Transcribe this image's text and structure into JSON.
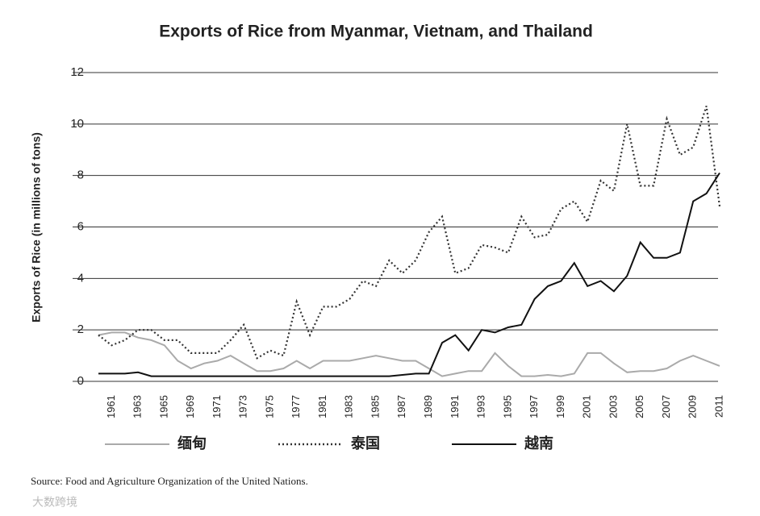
{
  "chart_data": {
    "type": "line",
    "title": "Exports of Rice from Myanmar, Vietnam, and Thailand",
    "y_label": "Exports of Rice (in millions of tons)",
    "source": "Source: Food and Agriculture Organization of the United Nations.",
    "watermark": "大数跨境",
    "categories": [
      null,
      "1961",
      null,
      "1963",
      null,
      "1965",
      null,
      "1969",
      null,
      "1971",
      null,
      "1973",
      null,
      "1975",
      null,
      "1977",
      null,
      "1981",
      null,
      "1983",
      null,
      "1985",
      null,
      "1987",
      null,
      "1989",
      null,
      "1991",
      null,
      "1993",
      null,
      "1995",
      null,
      "1997",
      null,
      "1999",
      null,
      "2001",
      null,
      "2003",
      null,
      "2005",
      null,
      "2007",
      null,
      "2009",
      null,
      "2011"
    ],
    "series": [
      {
        "name": "缅甸",
        "color": "#aaaaaa",
        "dash": "solid",
        "values": [
          1.8,
          1.9,
          1.9,
          1.7,
          1.6,
          1.4,
          0.8,
          0.5,
          0.7,
          0.8,
          1.0,
          0.7,
          0.4,
          0.4,
          0.5,
          0.8,
          0.5,
          0.8,
          0.8,
          0.8,
          0.9,
          1.0,
          0.9,
          0.8,
          0.8,
          0.5,
          0.2,
          0.3,
          0.4,
          0.4,
          1.1,
          0.6,
          0.2,
          0.2,
          0.25,
          0.2,
          0.3,
          1.1,
          1.1,
          0.7,
          0.35,
          0.4,
          0.4,
          0.5,
          0.8,
          1.0,
          0.8,
          0.6
        ]
      },
      {
        "name": "泰国",
        "color": "#333333",
        "dash": "dotted",
        "values": [
          1.8,
          1.4,
          1.6,
          2.0,
          2.0,
          1.6,
          1.6,
          1.1,
          1.1,
          1.1,
          1.6,
          2.2,
          0.9,
          1.2,
          1.0,
          3.1,
          1.8,
          2.9,
          2.9,
          3.2,
          3.9,
          3.7,
          4.7,
          4.2,
          4.7,
          5.8,
          6.4,
          4.2,
          4.4,
          5.3,
          5.2,
          5.0,
          6.4,
          5.6,
          5.7,
          6.7,
          7.0,
          6.2,
          7.8,
          7.4,
          10.0,
          7.6,
          7.6,
          10.2,
          8.8,
          9.1,
          10.7,
          6.8
        ]
      },
      {
        "name": "越南",
        "color": "#111111",
        "dash": "solid",
        "values": [
          0.3,
          0.3,
          0.3,
          0.35,
          0.2,
          0.2,
          0.2,
          0.2,
          0.2,
          0.2,
          0.2,
          0.2,
          0.2,
          0.2,
          0.2,
          0.2,
          0.2,
          0.2,
          0.2,
          0.2,
          0.2,
          0.2,
          0.2,
          0.25,
          0.3,
          0.3,
          1.5,
          1.8,
          1.2,
          2.0,
          1.9,
          2.1,
          2.2,
          3.2,
          3.7,
          3.9,
          4.6,
          3.7,
          3.9,
          3.5,
          4.1,
          5.4,
          4.8,
          4.8,
          5.0,
          7.0,
          7.3,
          8.1
        ]
      }
    ],
    "ylim": [
      0,
      12
    ],
    "yticks": [
      0,
      2,
      4,
      6,
      8,
      10,
      12
    ],
    "grid": true
  }
}
